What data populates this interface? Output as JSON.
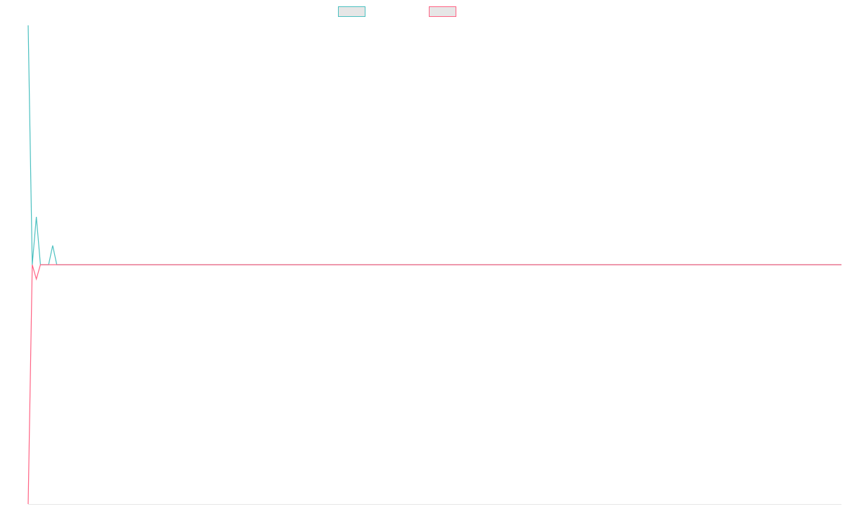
{
  "chart_data": {
    "type": "line",
    "x_count": 200,
    "ylim": [
      -100,
      100
    ],
    "grid": false,
    "legend_position": "top-center",
    "series": [
      {
        "name": "",
        "color": "#4bc0c0",
        "values": [
          100,
          0,
          20,
          0,
          0,
          0,
          8,
          0,
          0,
          0,
          0,
          0,
          0,
          0,
          0,
          0,
          0,
          0,
          0,
          0,
          0,
          0,
          0,
          0,
          0,
          0,
          0,
          0,
          0,
          0,
          0,
          0,
          0,
          0,
          0,
          0,
          0,
          0,
          0,
          0,
          0,
          0,
          0,
          0,
          0,
          0,
          0,
          0,
          0,
          0,
          0,
          0,
          0,
          0,
          0,
          0,
          0,
          0,
          0,
          0,
          0,
          0,
          0,
          0,
          0,
          0,
          0,
          0,
          0,
          0,
          0,
          0,
          0,
          0,
          0,
          0,
          0,
          0,
          0,
          0,
          0,
          0,
          0,
          0,
          0,
          0,
          0,
          0,
          0,
          0,
          0,
          0,
          0,
          0,
          0,
          0,
          0,
          0,
          0,
          0,
          0,
          0,
          0,
          0,
          0,
          0,
          0,
          0,
          0,
          0,
          0,
          0,
          0,
          0,
          0,
          0,
          0,
          0,
          0,
          0,
          0,
          0,
          0,
          0,
          0,
          0,
          0,
          0,
          0,
          0,
          0,
          0,
          0,
          0,
          0,
          0,
          0,
          0,
          0,
          0,
          0,
          0,
          0,
          0,
          0,
          0,
          0,
          0,
          0,
          0,
          0,
          0,
          0,
          0,
          0,
          0,
          0,
          0,
          0,
          0,
          0,
          0,
          0,
          0,
          0,
          0,
          0,
          0,
          0,
          0,
          0,
          0,
          0,
          0,
          0,
          0,
          0,
          0,
          0,
          0,
          0,
          0,
          0,
          0,
          0,
          0,
          0,
          0,
          0,
          0,
          0,
          0,
          0,
          0,
          0,
          0,
          0,
          0,
          0,
          0
        ]
      },
      {
        "name": "",
        "color": "#ff6384",
        "values": [
          -100,
          0,
          -6,
          0,
          0,
          0,
          0,
          0,
          0,
          0,
          0,
          0,
          0,
          0,
          0,
          0,
          0,
          0,
          0,
          0,
          0,
          0,
          0,
          0,
          0,
          0,
          0,
          0,
          0,
          0,
          0,
          0,
          0,
          0,
          0,
          0,
          0,
          0,
          0,
          0,
          0,
          0,
          0,
          0,
          0,
          0,
          0,
          0,
          0,
          0,
          0,
          0,
          0,
          0,
          0,
          0,
          0,
          0,
          0,
          0,
          0,
          0,
          0,
          0,
          0,
          0,
          0,
          0,
          0,
          0,
          0,
          0,
          0,
          0,
          0,
          0,
          0,
          0,
          0,
          0,
          0,
          0,
          0,
          0,
          0,
          0,
          0,
          0,
          0,
          0,
          0,
          0,
          0,
          0,
          0,
          0,
          0,
          0,
          0,
          0,
          0,
          0,
          0,
          0,
          0,
          0,
          0,
          0,
          0,
          0,
          0,
          0,
          0,
          0,
          0,
          0,
          0,
          0,
          0,
          0,
          0,
          0,
          0,
          0,
          0,
          0,
          0,
          0,
          0,
          0,
          0,
          0,
          0,
          0,
          0,
          0,
          0,
          0,
          0,
          0,
          0,
          0,
          0,
          0,
          0,
          0,
          0,
          0,
          0,
          0,
          0,
          0,
          0,
          0,
          0,
          0,
          0,
          0,
          0,
          0,
          0,
          0,
          0,
          0,
          0,
          0,
          0,
          0,
          0,
          0,
          0,
          0,
          0,
          0,
          0,
          0,
          0,
          0,
          0,
          0,
          0,
          0,
          0,
          0,
          0,
          0,
          0,
          0,
          0,
          0,
          0,
          0,
          0,
          0,
          0,
          0,
          0,
          0,
          0,
          0
        ]
      }
    ]
  }
}
